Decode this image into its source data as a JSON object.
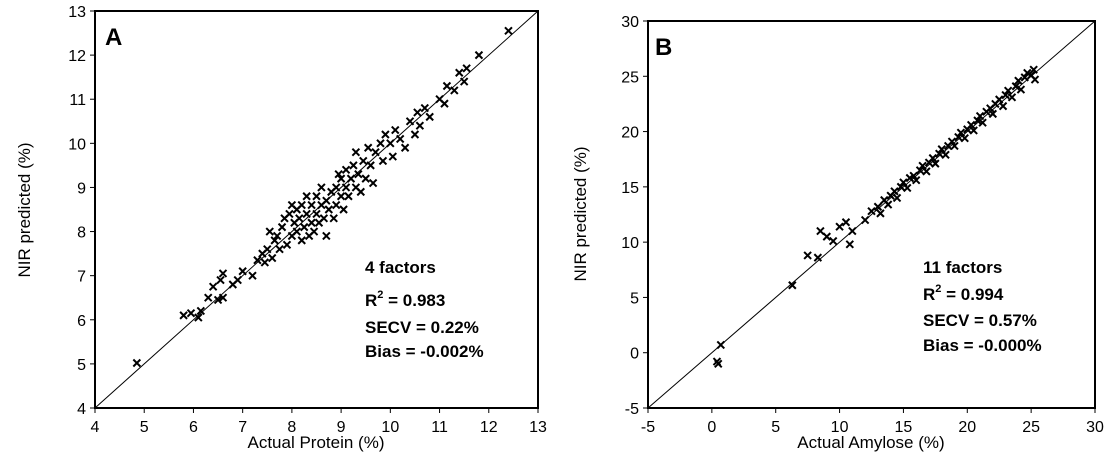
{
  "chart_data": [
    {
      "type": "scatter",
      "panel_label": "A",
      "xlabel": "Actual Protein (%)",
      "ylabel": "NIR predicted (%)",
      "xlim": [
        4,
        13
      ],
      "ylim": [
        4,
        13
      ],
      "xticks": [
        "4",
        "5",
        "6",
        "7",
        "8",
        "9",
        "10",
        "11",
        "12",
        "13"
      ],
      "yticks": [
        "4",
        "5",
        "6",
        "7",
        "8",
        "9",
        "10",
        "11",
        "12",
        "13"
      ],
      "reference_line": "y = x",
      "marker": "x",
      "grid": false,
      "annotation": {
        "factors": "4 factors",
        "r2_prefix": "R",
        "r2_sup": "2",
        "r2_value": " = 0.983",
        "secv": "SECV =  0.22%",
        "bias": "Bias = -0.002%"
      },
      "points": [
        [
          4.85,
          5.02
        ],
        [
          5.8,
          6.1
        ],
        [
          5.95,
          6.15
        ],
        [
          6.1,
          6.05
        ],
        [
          6.15,
          6.2
        ],
        [
          6.3,
          6.5
        ],
        [
          6.4,
          6.75
        ],
        [
          6.5,
          6.45
        ],
        [
          6.55,
          6.9
        ],
        [
          6.6,
          7.05
        ],
        [
          6.6,
          6.5
        ],
        [
          6.8,
          6.8
        ],
        [
          6.9,
          6.9
        ],
        [
          7.0,
          7.1
        ],
        [
          7.2,
          7.0
        ],
        [
          7.3,
          7.35
        ],
        [
          7.4,
          7.5
        ],
        [
          7.45,
          7.3
        ],
        [
          7.5,
          7.6
        ],
        [
          7.55,
          8.0
        ],
        [
          7.6,
          7.4
        ],
        [
          7.65,
          7.8
        ],
        [
          7.7,
          7.9
        ],
        [
          7.75,
          7.6
        ],
        [
          7.8,
          8.1
        ],
        [
          7.85,
          8.3
        ],
        [
          7.9,
          7.7
        ],
        [
          7.95,
          8.4
        ],
        [
          8.0,
          8.6
        ],
        [
          8.0,
          7.9
        ],
        [
          8.05,
          8.2
        ],
        [
          8.1,
          8.0
        ],
        [
          8.1,
          8.5
        ],
        [
          8.15,
          8.3
        ],
        [
          8.2,
          7.8
        ],
        [
          8.2,
          8.6
        ],
        [
          8.25,
          8.1
        ],
        [
          8.3,
          8.4
        ],
        [
          8.3,
          8.8
        ],
        [
          8.35,
          7.9
        ],
        [
          8.4,
          8.2
        ],
        [
          8.4,
          8.6
        ],
        [
          8.45,
          8.0
        ],
        [
          8.5,
          8.4
        ],
        [
          8.5,
          8.8
        ],
        [
          8.55,
          8.2
        ],
        [
          8.6,
          8.6
        ],
        [
          8.6,
          9.0
        ],
        [
          8.65,
          8.3
        ],
        [
          8.7,
          8.7
        ],
        [
          8.7,
          7.9
        ],
        [
          8.75,
          8.5
        ],
        [
          8.8,
          8.9
        ],
        [
          8.85,
          8.3
        ],
        [
          8.9,
          9.0
        ],
        [
          8.9,
          8.6
        ],
        [
          8.95,
          9.3
        ],
        [
          9.0,
          8.8
        ],
        [
          9.0,
          9.2
        ],
        [
          9.05,
          8.5
        ],
        [
          9.1,
          9.0
        ],
        [
          9.1,
          9.4
        ],
        [
          9.15,
          8.8
        ],
        [
          9.2,
          9.2
        ],
        [
          9.25,
          9.5
        ],
        [
          9.3,
          9.0
        ],
        [
          9.3,
          9.8
        ],
        [
          9.35,
          9.3
        ],
        [
          9.4,
          8.9
        ],
        [
          9.45,
          9.6
        ],
        [
          9.5,
          9.2
        ],
        [
          9.55,
          9.9
        ],
        [
          9.6,
          9.5
        ],
        [
          9.65,
          9.1
        ],
        [
          9.7,
          9.8
        ],
        [
          9.8,
          10.0
        ],
        [
          9.85,
          9.6
        ],
        [
          9.9,
          10.2
        ],
        [
          10.0,
          10.0
        ],
        [
          10.05,
          9.7
        ],
        [
          10.1,
          10.3
        ],
        [
          10.2,
          10.1
        ],
        [
          10.3,
          9.9
        ],
        [
          10.4,
          10.5
        ],
        [
          10.5,
          10.2
        ],
        [
          10.55,
          10.7
        ],
        [
          10.6,
          10.4
        ],
        [
          10.7,
          10.8
        ],
        [
          10.8,
          10.6
        ],
        [
          11.0,
          11.0
        ],
        [
          11.1,
          10.9
        ],
        [
          11.15,
          11.3
        ],
        [
          11.3,
          11.2
        ],
        [
          11.4,
          11.6
        ],
        [
          11.5,
          11.4
        ],
        [
          11.55,
          11.7
        ],
        [
          11.8,
          12.0
        ],
        [
          12.4,
          12.55
        ]
      ]
    },
    {
      "type": "scatter",
      "panel_label": "B",
      "xlabel": "Actual Amylose (%)",
      "ylabel": "NIR predicted (%)",
      "xlim": [
        -5,
        30
      ],
      "ylim": [
        -5,
        30
      ],
      "xticks": [
        "-5",
        "0",
        "5",
        "10",
        "15",
        "20",
        "25",
        "30"
      ],
      "yticks": [
        "-5",
        "0",
        "5",
        "10",
        "15",
        "20",
        "25",
        "30"
      ],
      "reference_line": "y = x",
      "marker": "x",
      "grid": false,
      "annotation": {
        "factors": "11 factors",
        "r2_prefix": "R",
        "r2_sup": "2",
        "r2_value": " = 0.994",
        "secv": "SECV = 0.57%",
        "bias": "Bias = -0.000%"
      },
      "points": [
        [
          0.4,
          -0.8
        ],
        [
          0.5,
          -1.0
        ],
        [
          0.7,
          0.7
        ],
        [
          6.3,
          6.1
        ],
        [
          7.5,
          8.8
        ],
        [
          8.3,
          8.6
        ],
        [
          8.5,
          11.0
        ],
        [
          9.0,
          10.5
        ],
        [
          9.5,
          10.1
        ],
        [
          10.0,
          11.4
        ],
        [
          10.5,
          11.8
        ],
        [
          10.8,
          9.8
        ],
        [
          11.0,
          11.0
        ],
        [
          12.0,
          12.0
        ],
        [
          12.5,
          12.8
        ],
        [
          13.0,
          13.2
        ],
        [
          13.2,
          12.6
        ],
        [
          13.5,
          13.8
        ],
        [
          13.8,
          13.4
        ],
        [
          14.0,
          14.2
        ],
        [
          14.3,
          14.6
        ],
        [
          14.5,
          14.0
        ],
        [
          14.8,
          15.0
        ],
        [
          15.0,
          15.4
        ],
        [
          15.3,
          14.9
        ],
        [
          15.5,
          15.8
        ],
        [
          15.8,
          16.0
        ],
        [
          16.0,
          15.6
        ],
        [
          16.3,
          16.5
        ],
        [
          16.5,
          16.9
        ],
        [
          16.8,
          16.4
        ],
        [
          17.0,
          17.2
        ],
        [
          17.3,
          17.6
        ],
        [
          17.5,
          17.1
        ],
        [
          17.8,
          18.0
        ],
        [
          18.0,
          18.4
        ],
        [
          18.3,
          17.9
        ],
        [
          18.5,
          18.7
        ],
        [
          18.8,
          19.1
        ],
        [
          19.0,
          18.7
        ],
        [
          19.3,
          19.5
        ],
        [
          19.5,
          19.9
        ],
        [
          19.8,
          19.4
        ],
        [
          20.0,
          20.2
        ],
        [
          20.3,
          20.6
        ],
        [
          20.5,
          20.1
        ],
        [
          20.8,
          21.0
        ],
        [
          21.0,
          21.4
        ],
        [
          21.2,
          20.8
        ],
        [
          21.5,
          21.8
        ],
        [
          21.8,
          22.1
        ],
        [
          22.0,
          21.6
        ],
        [
          22.2,
          22.5
        ],
        [
          22.5,
          22.9
        ],
        [
          22.8,
          22.3
        ],
        [
          23.0,
          23.3
        ],
        [
          23.2,
          23.7
        ],
        [
          23.5,
          23.1
        ],
        [
          23.8,
          24.1
        ],
        [
          24.0,
          24.6
        ],
        [
          24.2,
          23.8
        ],
        [
          24.5,
          24.9
        ],
        [
          24.7,
          25.3
        ],
        [
          25.0,
          25.1
        ],
        [
          25.2,
          25.6
        ],
        [
          25.3,
          24.7
        ]
      ]
    }
  ]
}
